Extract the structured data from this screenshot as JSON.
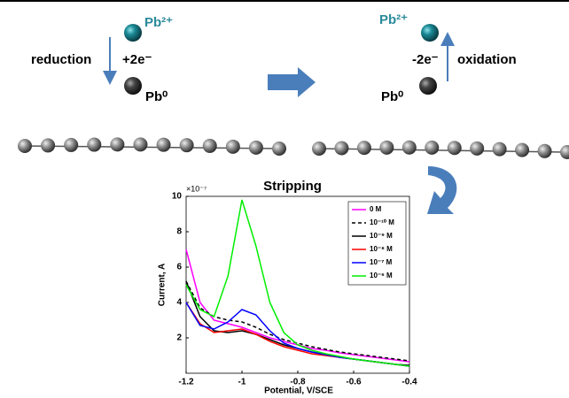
{
  "diagram": {
    "left": {
      "ion": "Pb²⁺",
      "process": "reduction",
      "electrons": "+2e⁻",
      "metal": "Pb⁰"
    },
    "right": {
      "ion": "Pb²⁺",
      "process": "oxidation",
      "electrons": "-2e⁻",
      "metal": "Pb⁰"
    }
  },
  "chart_data": {
    "type": "line",
    "title": "Stripping",
    "x_label": "Potential, V/SCE",
    "y_label": "Current, A",
    "y_multiplier": "×10⁻⁷",
    "x": [
      -1.2,
      -1.15,
      -1.1,
      -1.05,
      -1,
      -0.95,
      -0.9,
      -0.85,
      -0.8,
      -0.75,
      -0.7,
      -0.65,
      -0.6,
      -0.55,
      -0.5,
      -0.45,
      -0.4
    ],
    "xlim": [
      -1.2,
      -0.4
    ],
    "xticks": [
      -1.2,
      -1,
      -0.8,
      -0.6,
      -0.4
    ],
    "ylim": [
      0,
      10
    ],
    "yticks": [
      2,
      4,
      6,
      8,
      10
    ],
    "legend": "upper right",
    "series": [
      {
        "name": "0 M",
        "color": "#ff00ff",
        "style": "solid",
        "values": [
          7.0,
          4.0,
          3.0,
          2.8,
          2.6,
          2.3,
          2.0,
          1.8,
          1.6,
          1.4,
          1.3,
          1.15,
          1.05,
          0.95,
          0.85,
          0.75,
          0.65
        ]
      },
      {
        "name": "10⁻¹⁰ M",
        "color": "#000000",
        "style": "dashed",
        "values": [
          5.2,
          3.7,
          3.2,
          3.0,
          2.9,
          2.6,
          2.2,
          1.9,
          1.7,
          1.5,
          1.35,
          1.2,
          1.1,
          1.0,
          0.9,
          0.8,
          0.7
        ]
      },
      {
        "name": "10⁻⁹ M",
        "color": "#000000",
        "style": "solid",
        "values": [
          5.2,
          3.2,
          2.4,
          2.3,
          2.4,
          2.2,
          1.9,
          1.6,
          1.4,
          1.2,
          1.05,
          0.9,
          0.8,
          0.7,
          0.6,
          0.5,
          0.45
        ]
      },
      {
        "name": "10⁻⁸ M",
        "color": "#ff0000",
        "style": "solid",
        "values": [
          4.0,
          2.8,
          2.3,
          2.4,
          2.5,
          2.2,
          1.8,
          1.5,
          1.3,
          1.1,
          1.0,
          0.9,
          0.8,
          0.7,
          0.6,
          0.5,
          0.4
        ]
      },
      {
        "name": "10⁻⁷ M",
        "color": "#0000ff",
        "style": "solid",
        "values": [
          4.0,
          2.7,
          2.5,
          2.9,
          3.6,
          3.3,
          2.4,
          1.7,
          1.4,
          1.2,
          1.05,
          0.9,
          0.8,
          0.7,
          0.6,
          0.5,
          0.4
        ]
      },
      {
        "name": "10⁻⁶ M",
        "color": "#00ee00",
        "style": "solid",
        "values": [
          5.0,
          3.6,
          3.2,
          5.5,
          9.8,
          7.2,
          4.0,
          2.3,
          1.6,
          1.3,
          1.1,
          0.95,
          0.8,
          0.7,
          0.6,
          0.5,
          0.4
        ]
      }
    ]
  }
}
